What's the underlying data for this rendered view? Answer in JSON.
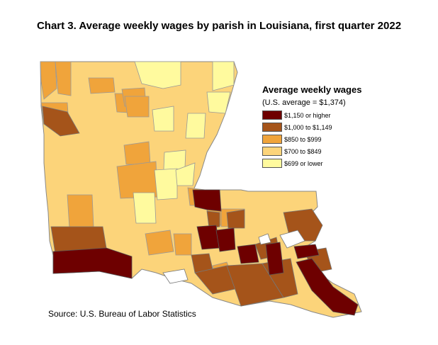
{
  "title": "Chart 3. Average weekly wages by parish in Louisiana, first quarter 2022",
  "legend": {
    "title": "Average weekly wages",
    "subtitle": "(U.S. average = $1,374)",
    "items": [
      {
        "label": "$1,150 or higher",
        "color": "#6e0000"
      },
      {
        "label": "$1,000 to $1,149",
        "color": "#a5541a"
      },
      {
        "label": "$850 to $999",
        "color": "#f0a43b"
      },
      {
        "label": "$700 to $849",
        "color": "#fcd47a"
      },
      {
        "label": "$699 or lower",
        "color": "#fffa9e"
      }
    ]
  },
  "source": "Source: U.S. Bureau of Labor Statistics"
}
